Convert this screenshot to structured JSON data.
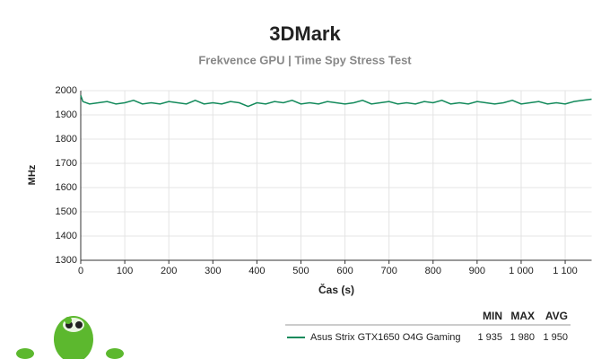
{
  "chart_data": {
    "type": "line",
    "title": "3DMark",
    "subtitle": "Frekvence GPU | Time Spy Stress Test",
    "y_label": "MHz",
    "x_label": "Čas (s)",
    "x": [
      0,
      5,
      20,
      40,
      60,
      80,
      100,
      120,
      140,
      160,
      180,
      200,
      220,
      240,
      260,
      280,
      300,
      320,
      340,
      360,
      380,
      400,
      420,
      440,
      460,
      480,
      500,
      520,
      540,
      560,
      580,
      600,
      620,
      640,
      660,
      680,
      700,
      720,
      740,
      760,
      780,
      800,
      820,
      840,
      860,
      880,
      900,
      920,
      940,
      960,
      980,
      1000,
      1020,
      1040,
      1060,
      1080,
      1100,
      1120,
      1140,
      1160
    ],
    "series": [
      {
        "name": "Asus Strix GTX1650 O4G Gaming",
        "color": "#138a5b",
        "values": [
          1980,
          1955,
          1945,
          1950,
          1955,
          1945,
          1950,
          1960,
          1945,
          1950,
          1945,
          1955,
          1950,
          1945,
          1960,
          1945,
          1950,
          1945,
          1955,
          1950,
          1935,
          1950,
          1945,
          1955,
          1950,
          1960,
          1945,
          1950,
          1945,
          1955,
          1950,
          1945,
          1950,
          1960,
          1945,
          1950,
          1955,
          1945,
          1950,
          1945,
          1955,
          1950,
          1960,
          1945,
          1950,
          1945,
          1955,
          1950,
          1945,
          1950,
          1960,
          1945,
          1950,
          1955,
          1945,
          1950,
          1945,
          1955,
          1960,
          1965
        ],
        "stats": [
          "1 935",
          "1 980",
          "1 950"
        ]
      }
    ],
    "stats_headers": [
      "MIN",
      "MAX",
      "AVG"
    ],
    "xlim": [
      0,
      1160
    ],
    "ylim": [
      1300,
      2000
    ],
    "xticks": [
      0,
      100,
      200,
      300,
      400,
      500,
      600,
      700,
      800,
      900,
      {
        "value": 1000,
        "label": "1 000"
      },
      {
        "value": 1100,
        "label": "1 100"
      }
    ],
    "yticks": [
      1300,
      1400,
      1500,
      1600,
      1700,
      1800,
      1900,
      2000
    ],
    "grid": true
  }
}
